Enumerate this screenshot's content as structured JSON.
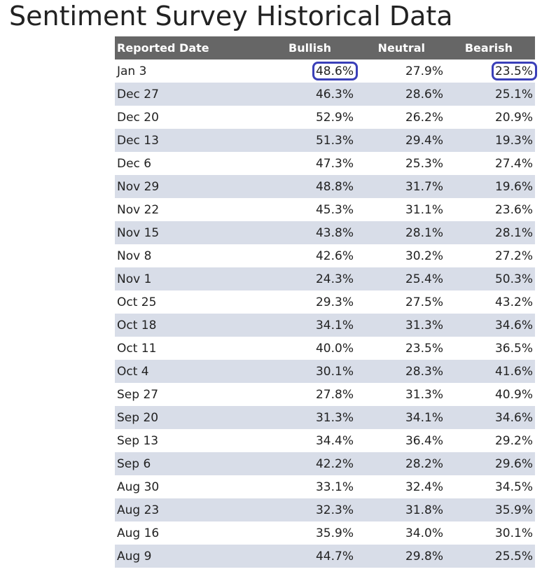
{
  "title": "Sentiment Survey Historical Data",
  "table": {
    "headers": [
      "Reported Date",
      "Bullish",
      "Neutral",
      "Bearish"
    ],
    "rows": [
      {
        "date": "Jan 3",
        "bullish": "48.6%",
        "neutral": "27.9%",
        "bearish": "23.5%"
      },
      {
        "date": "Dec 27",
        "bullish": "46.3%",
        "neutral": "28.6%",
        "bearish": "25.1%"
      },
      {
        "date": "Dec 20",
        "bullish": "52.9%",
        "neutral": "26.2%",
        "bearish": "20.9%"
      },
      {
        "date": "Dec 13",
        "bullish": "51.3%",
        "neutral": "29.4%",
        "bearish": "19.3%"
      },
      {
        "date": "Dec 6",
        "bullish": "47.3%",
        "neutral": "25.3%",
        "bearish": "27.4%"
      },
      {
        "date": "Nov 29",
        "bullish": "48.8%",
        "neutral": "31.7%",
        "bearish": "19.6%"
      },
      {
        "date": "Nov 22",
        "bullish": "45.3%",
        "neutral": "31.1%",
        "bearish": "23.6%"
      },
      {
        "date": "Nov 15",
        "bullish": "43.8%",
        "neutral": "28.1%",
        "bearish": "28.1%"
      },
      {
        "date": "Nov 8",
        "bullish": "42.6%",
        "neutral": "30.2%",
        "bearish": "27.2%"
      },
      {
        "date": "Nov 1",
        "bullish": "24.3%",
        "neutral": "25.4%",
        "bearish": "50.3%"
      },
      {
        "date": "Oct 25",
        "bullish": "29.3%",
        "neutral": "27.5%",
        "bearish": "43.2%"
      },
      {
        "date": "Oct 18",
        "bullish": "34.1%",
        "neutral": "31.3%",
        "bearish": "34.6%"
      },
      {
        "date": "Oct 11",
        "bullish": "40.0%",
        "neutral": "23.5%",
        "bearish": "36.5%"
      },
      {
        "date": "Oct 4",
        "bullish": "30.1%",
        "neutral": "28.3%",
        "bearish": "41.6%"
      },
      {
        "date": "Sep 27",
        "bullish": "27.8%",
        "neutral": "31.3%",
        "bearish": "40.9%"
      },
      {
        "date": "Sep 20",
        "bullish": "31.3%",
        "neutral": "34.1%",
        "bearish": "34.6%"
      },
      {
        "date": "Sep 13",
        "bullish": "34.4%",
        "neutral": "36.4%",
        "bearish": "29.2%"
      },
      {
        "date": "Sep 6",
        "bullish": "42.2%",
        "neutral": "28.2%",
        "bearish": "29.6%"
      },
      {
        "date": "Aug 30",
        "bullish": "33.1%",
        "neutral": "32.4%",
        "bearish": "34.5%"
      },
      {
        "date": "Aug 23",
        "bullish": "32.3%",
        "neutral": "31.8%",
        "bearish": "35.9%"
      },
      {
        "date": "Aug 16",
        "bullish": "35.9%",
        "neutral": "34.0%",
        "bearish": "30.1%"
      },
      {
        "date": "Aug 9",
        "bullish": "44.7%",
        "neutral": "29.8%",
        "bearish": "25.5%"
      }
    ]
  },
  "highlight": {
    "circled_cells": [
      "rows.0.bullish",
      "rows.0.bearish"
    ],
    "circle_color": "#3a3fb8"
  },
  "colors": {
    "header_bg": "#666666",
    "stripe_bg": "#d8dde8"
  }
}
